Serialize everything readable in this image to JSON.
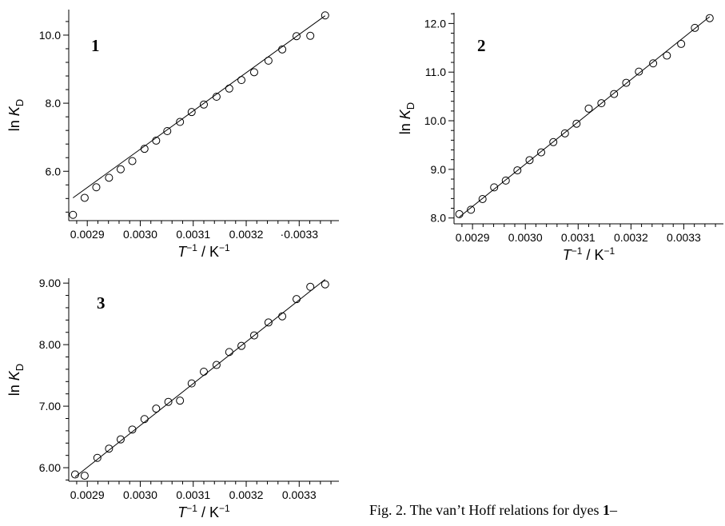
{
  "chart_data": [
    {
      "type": "scatter",
      "panel_label": "1",
      "xlabel": {
        "sym": "T",
        "sup1": "−1",
        "mid": " / K",
        "sup2": "−1"
      },
      "ylabel": {
        "pre": "ln ",
        "sym": "K",
        "sub": "D"
      },
      "xlim": [
        0.002865,
        0.003375
      ],
      "ylim": [
        4.55,
        10.75
      ],
      "xticks": [
        0.0029,
        0.003,
        0.0031,
        0.0032,
        0.0033
      ],
      "xtick_labels": [
        "0.0029",
        "0.0030",
        "0.0031",
        "0.0032",
        "·0.0033"
      ],
      "yticks": [
        6,
        8,
        10
      ],
      "ytick_labels": [
        "6.0",
        "8.0",
        "10.0"
      ],
      "grid": false,
      "x": [
        0.002873,
        0.002895,
        0.002917,
        0.002941,
        0.002963,
        0.002985,
        0.003008,
        0.00303,
        0.003051,
        0.003075,
        0.003097,
        0.00312,
        0.003144,
        0.003168,
        0.003191,
        0.003215,
        0.003242,
        0.003268,
        0.003295,
        0.003321,
        0.003349
      ],
      "y": [
        4.72,
        5.22,
        5.53,
        5.81,
        6.06,
        6.3,
        6.66,
        6.9,
        7.18,
        7.45,
        7.74,
        7.96,
        8.19,
        8.43,
        8.68,
        8.91,
        9.25,
        9.58,
        9.97,
        9.98,
        10.58
      ],
      "fit": {
        "x": [
          0.002873,
          0.003349
        ],
        "y": [
          5.22,
          10.57
        ]
      }
    },
    {
      "type": "scatter",
      "panel_label": "2",
      "xlabel": {
        "sym": "T",
        "sup1": "−1",
        "mid": " / K",
        "sup2": "−1"
      },
      "ylabel": {
        "pre": "ln ",
        "sym": "K",
        "sub": "D"
      },
      "xlim": [
        0.002865,
        0.003375
      ],
      "ylim": [
        7.88,
        12.22
      ],
      "xticks": [
        0.0029,
        0.003,
        0.0031,
        0.0032,
        0.0033
      ],
      "xtick_labels": [
        "0.0029",
        "0.0030",
        "0.0031",
        "0.0032",
        "0.0033"
      ],
      "yticks": [
        8,
        9,
        10,
        11,
        12
      ],
      "ytick_labels": [
        "8.0",
        "9.0",
        "10.0",
        "11.0",
        "12.0"
      ],
      "grid": false,
      "x": [
        0.002875,
        0.002897,
        0.002919,
        0.002941,
        0.002963,
        0.002985,
        0.003008,
        0.00303,
        0.003053,
        0.003075,
        0.003097,
        0.00312,
        0.003144,
        0.003168,
        0.003191,
        0.003215,
        0.003242,
        0.003268,
        0.003295,
        0.003321,
        0.003349
      ],
      "y": [
        8.08,
        8.17,
        8.39,
        8.63,
        8.77,
        8.98,
        9.19,
        9.35,
        9.56,
        9.74,
        9.94,
        10.25,
        10.36,
        10.55,
        10.78,
        11.01,
        11.18,
        11.34,
        11.58,
        11.91,
        12.11
      ],
      "fit": {
        "x": [
          0.002875,
          0.003349
        ],
        "y": [
          8.02,
          12.14
        ]
      }
    },
    {
      "type": "scatter",
      "panel_label": "3",
      "xlabel": {
        "sym": "T",
        "sup1": "−1",
        "mid": " / K",
        "sup2": "−1"
      },
      "ylabel": {
        "pre": "ln ",
        "sym": "K",
        "sub": "D"
      },
      "xlim": [
        0.002865,
        0.003375
      ],
      "ylim": [
        5.78,
        9.08
      ],
      "xticks": [
        0.0029,
        0.003,
        0.0031,
        0.0032,
        0.0033
      ],
      "xtick_labels": [
        "0.0029",
        "0.0030",
        "0.0031",
        "0.0032",
        "0.0033"
      ],
      "yticks": [
        6,
        7,
        8,
        9
      ],
      "ytick_labels": [
        "6.00",
        "7.00",
        "8.00",
        "9.00"
      ],
      "grid": false,
      "x": [
        0.002877,
        0.002895,
        0.002919,
        0.002941,
        0.002963,
        0.002985,
        0.003008,
        0.00303,
        0.003053,
        0.003075,
        0.003097,
        0.00312,
        0.003144,
        0.003168,
        0.003191,
        0.003215,
        0.003242,
        0.003268,
        0.003295,
        0.003321,
        0.003349
      ],
      "y": [
        5.89,
        5.87,
        6.16,
        6.31,
        6.46,
        6.62,
        6.79,
        6.96,
        7.07,
        7.09,
        7.37,
        7.56,
        7.67,
        7.88,
        7.98,
        8.15,
        8.36,
        8.46,
        8.74,
        8.94,
        8.98
      ],
      "fit": {
        "x": [
          0.002877,
          0.003349
        ],
        "y": [
          5.85,
          9.06
        ]
      }
    }
  ],
  "caption": {
    "text": "Fig. 2. The van’t Hoff relations for dyes ",
    "bold": "1",
    "tail": "–"
  }
}
